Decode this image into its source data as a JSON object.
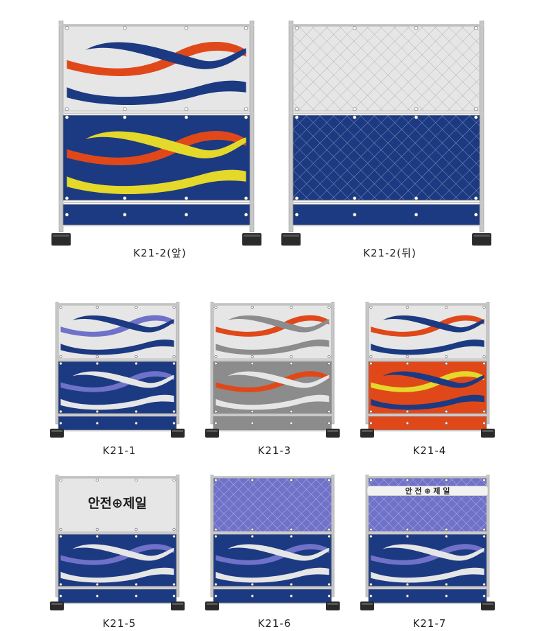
{
  "colors": {
    "navy": "#1c3a82",
    "red": "#e0481a",
    "yellow": "#e4d82a",
    "gray": "#8c8c8c",
    "lavender": "#6f72c8",
    "light": "#e6e6e6",
    "frame": "#c8c8c8",
    "base": "#2a2a2a",
    "white": "#ffffff"
  },
  "fences": [
    {
      "id": "k21-2-front",
      "label": "K21-2(앞)",
      "top_panel": "light",
      "mid_panel": "navy",
      "top_waves": [
        "red",
        "navy",
        "navy"
      ],
      "mid_waves": [
        "red",
        "yellow",
        "yellow"
      ],
      "top_text": "",
      "mesh_top": false,
      "mesh_mid": false
    },
    {
      "id": "k21-2-back",
      "label": "K21-2(뒤)",
      "top_panel": "light",
      "mid_panel": "navy",
      "top_waves": [],
      "mid_waves": [],
      "top_text": "",
      "mesh_top": true,
      "mesh_mid": true
    },
    {
      "id": "k21-1",
      "label": "K21-1",
      "top_panel": "light",
      "mid_panel": "navy",
      "top_waves": [
        "lavender",
        "navy",
        "navy"
      ],
      "mid_waves": [
        "lavender",
        "light",
        "light"
      ],
      "top_text": "",
      "mesh_top": false,
      "mesh_mid": false
    },
    {
      "id": "k21-3",
      "label": "K21-3",
      "top_panel": "light",
      "mid_panel": "gray",
      "top_waves": [
        "red",
        "gray",
        "gray"
      ],
      "mid_waves": [
        "red",
        "light",
        "light"
      ],
      "top_text": "",
      "mesh_top": false,
      "mesh_mid": false
    },
    {
      "id": "k21-4",
      "label": "K21-4",
      "top_panel": "light",
      "mid_panel": "red",
      "top_waves": [
        "red",
        "navy",
        "navy"
      ],
      "mid_waves": [
        "yellow",
        "navy",
        "navy"
      ],
      "top_text": "",
      "mesh_top": false,
      "mesh_mid": false
    },
    {
      "id": "k21-5",
      "label": "K21-5",
      "top_panel": "light",
      "mid_panel": "navy",
      "top_waves": [],
      "mid_waves": [
        "lavender",
        "light",
        "light"
      ],
      "top_text": "안전⊕제일",
      "mesh_top": false,
      "mesh_mid": false
    },
    {
      "id": "k21-6",
      "label": "K21-6",
      "top_panel": "lavender",
      "mid_panel": "navy",
      "top_waves": [],
      "mid_waves": [
        "lavender",
        "light",
        "light"
      ],
      "top_text": "",
      "mesh_top": true,
      "mesh_mid": false
    },
    {
      "id": "k21-7",
      "label": "K21-7",
      "top_panel": "lavender",
      "mid_panel": "navy",
      "top_waves": [],
      "mid_waves": [
        "lavender",
        "light",
        "light"
      ],
      "top_text": "안 전 ⊕ 제 일",
      "mesh_top": true,
      "mesh_mid": false
    }
  ]
}
